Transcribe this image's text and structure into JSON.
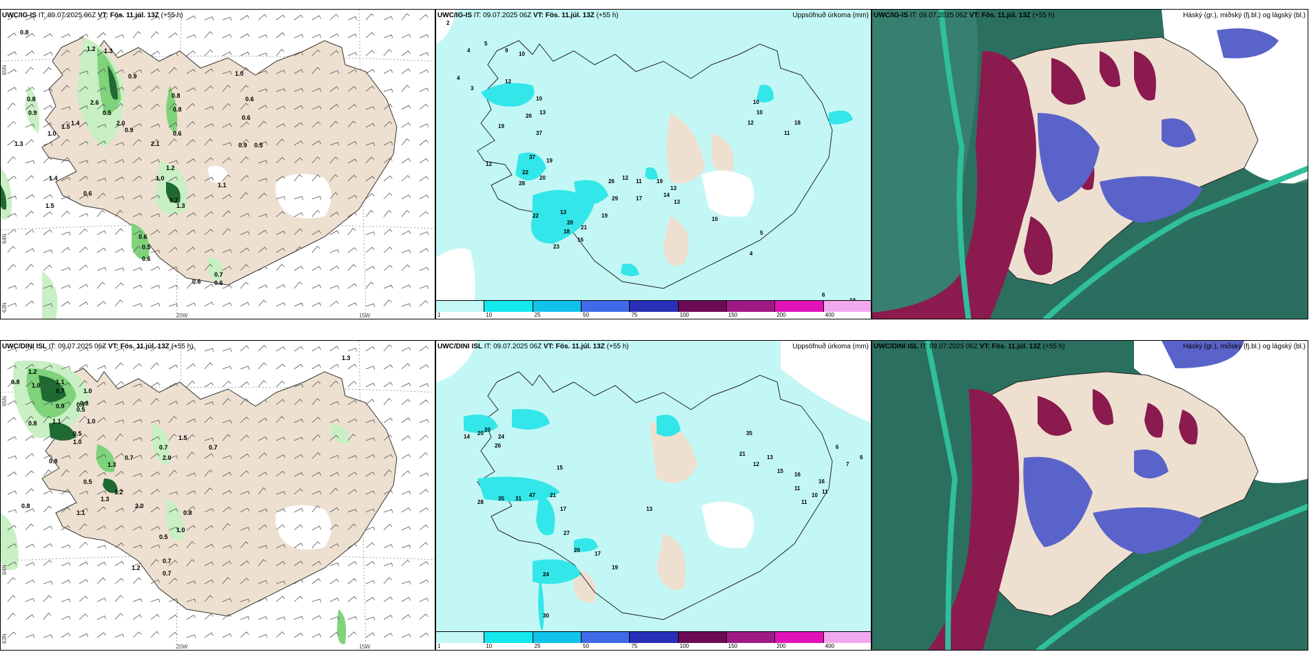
{
  "colors": {
    "land": "#eee0d0",
    "ocean_white": "#ffffff",
    "precip_light": "#c3f7f5",
    "precip_cyan": "#33e6e9",
    "wind_green_light": "#c9efc4",
    "wind_green_mid": "#7fd37b",
    "wind_green_dark": "#1e6a32",
    "cloud_high": "#5a63c9",
    "cloud_mid": "#8b1a4f",
    "cloud_low": "#2b6f5f",
    "cloud_teal": "#2fbf9a"
  },
  "rows": [
    {
      "model": "UWC/IG-IS",
      "it_text": "IT: 09.07.2025 06Z",
      "vt_text": "VT: Fös. 11.júl. 13Z",
      "lead_text": "(+55 h)",
      "wind": {
        "lat_labels": [
          "65N",
          "64N",
          "63N"
        ],
        "lon_labels": [
          "20W",
          "15W"
        ],
        "values": [
          "0.8",
          "1.2",
          "1.3",
          "0.9",
          "0.8",
          "2.6",
          "0.5",
          "0.8",
          "1.4",
          "1.5",
          "1.0",
          "2.0",
          "0.9",
          "0.8",
          "0.9",
          "1.3",
          "2.1",
          "0.6",
          "1.0",
          "0.6",
          "0.6",
          "0.9",
          "0.5",
          "1.0",
          "1.4",
          "1.2",
          "1.1",
          "0.7",
          "0.6",
          "1.5",
          "1.3",
          "0.6",
          "0.5",
          "0.6",
          "0.6",
          "0.7",
          "0.6"
        ]
      },
      "precip": {
        "right_title": "Uppsöfnuð úrkoma (mm)",
        "values": [
          "2",
          "4",
          "5",
          "9",
          "4",
          "3",
          "10",
          "12",
          "10",
          "26",
          "37",
          "19",
          "13",
          "12",
          "37",
          "19",
          "22",
          "28",
          "20",
          "22",
          "13",
          "20",
          "18",
          "16",
          "23",
          "21",
          "19",
          "29",
          "26",
          "12",
          "11",
          "17",
          "19",
          "13",
          "14",
          "13",
          "10",
          "10",
          "12",
          "18",
          "11",
          "10",
          "5",
          "4",
          "6",
          "10"
        ]
      },
      "cloud": {
        "right_title": "Háský (gr.), miðský (fj.bl.) og lágský (bl.)"
      }
    },
    {
      "model": "UWC/DINI ISL",
      "it_text": "IT: 09.07.2025 06Z",
      "vt_text": "VT: Fös. 11.júl. 13Z",
      "lead_text": "(+55 h)",
      "wind": {
        "lat_labels": [
          "65N",
          "64N",
          "63N"
        ],
        "lon_labels": [
          "20W",
          "15W"
        ],
        "values": [
          "1.2",
          "0.8",
          "1.0",
          "1.1",
          "1.0",
          "0.7",
          "0.7",
          "0.9",
          "0.8",
          "0.5",
          "1.1",
          "0.8",
          "1.0",
          "0.5",
          "1.0",
          "1.5",
          "0.7",
          "0.7",
          "2.0",
          "0.8",
          "0.7",
          "1.3",
          "0.5",
          "1.2",
          "2.0",
          "0.8",
          "1.1",
          "1.3",
          "0.8",
          "1.0",
          "0.5",
          "0.7",
          "1.2",
          "0.7",
          "1.3"
        ]
      },
      "precip": {
        "right_title": "Uppsöfnuð úrkoma (mm)",
        "values": [
          "20",
          "24",
          "14",
          "20",
          "26",
          "15",
          "28",
          "35",
          "31",
          "47",
          "21",
          "17",
          "27",
          "20",
          "17",
          "24",
          "19",
          "30",
          "13",
          "35",
          "21",
          "12",
          "13",
          "15",
          "16",
          "11",
          "10",
          "11",
          "16",
          "11",
          "6",
          "7",
          "6"
        ]
      },
      "cloud": {
        "right_title": "Háský (gr.), miðský (fj.bl.) og lágský (bl.)"
      }
    }
  ],
  "colorbar": {
    "ticks": [
      "1",
      "10",
      "25",
      "50",
      "75",
      "100",
      "150",
      "200",
      "400"
    ],
    "colors": [
      "#c3f7f5",
      "#15e8ec",
      "#11c3ea",
      "#3f6ae8",
      "#2a2fb8",
      "#6b0a55",
      "#a01a86",
      "#e112b7",
      "#f2a8ee"
    ]
  }
}
